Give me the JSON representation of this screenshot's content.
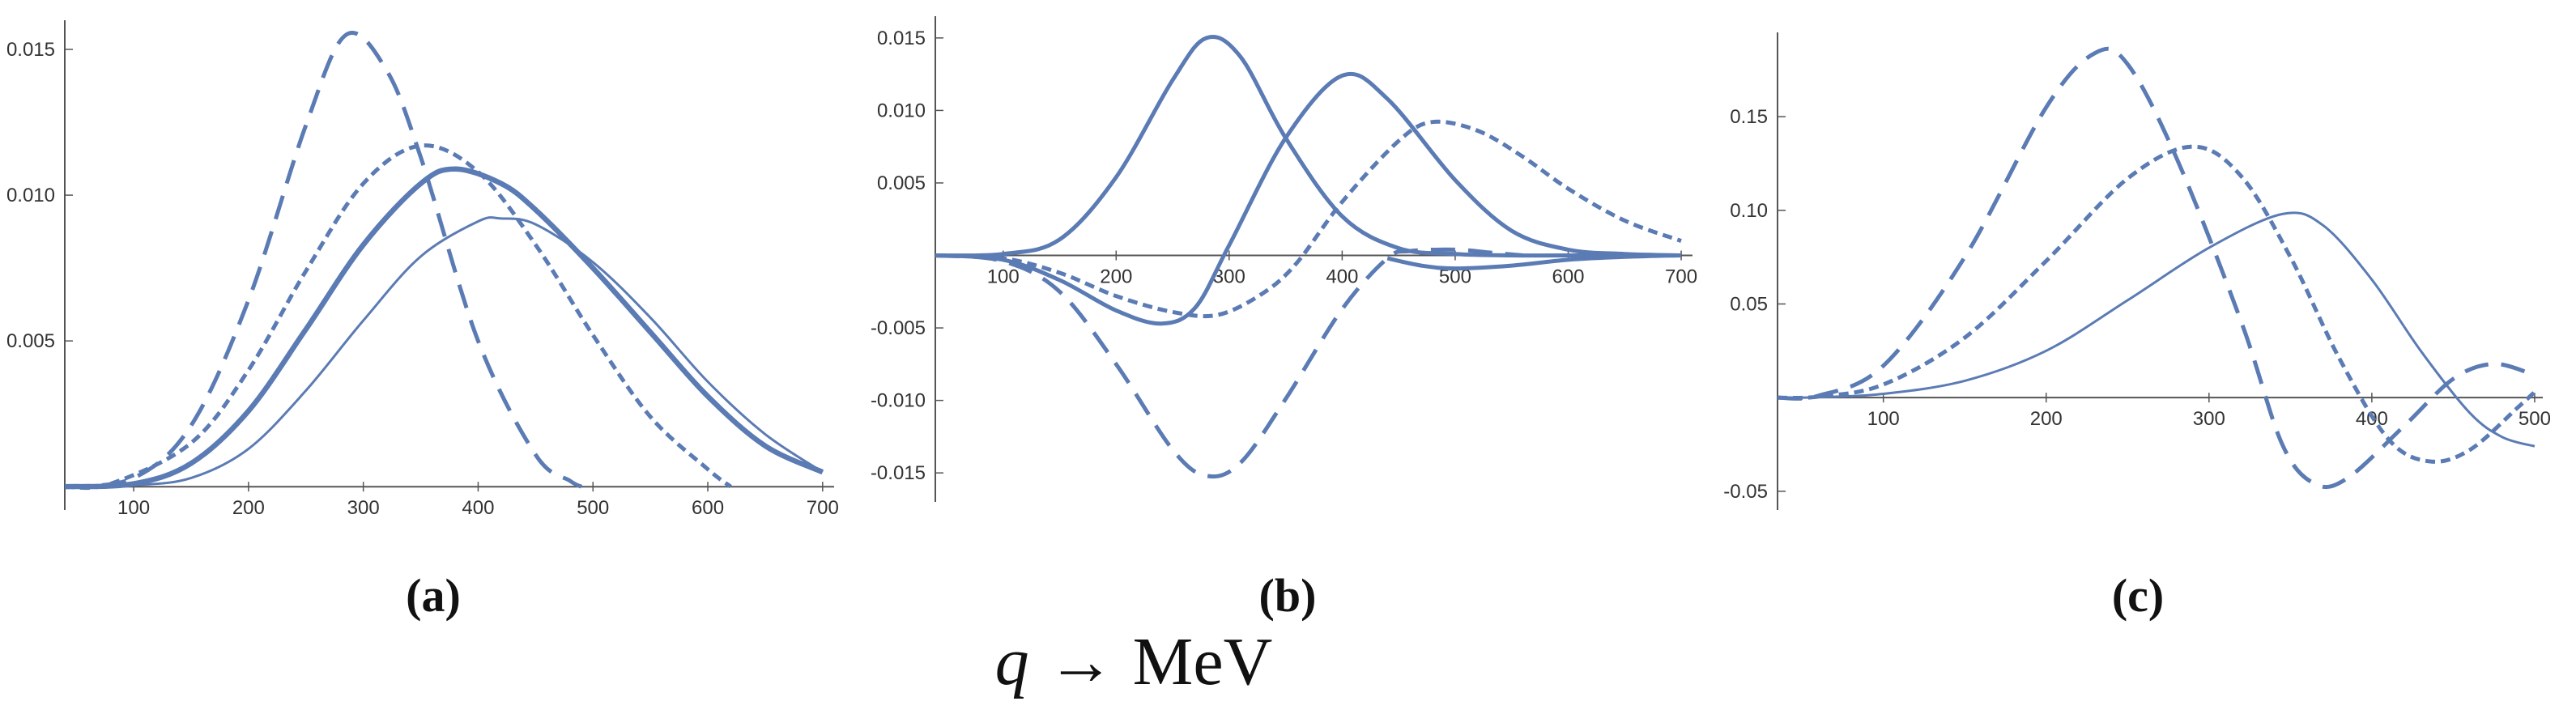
{
  "xlabel": {
    "var": "q",
    "arrow": "→",
    "unit": "MeV"
  },
  "style": {
    "line_color": "#5b7bb4",
    "axis_color": "#555555"
  },
  "chart_data": [
    {
      "type": "line",
      "panel_label": "(a)",
      "xlim": [
        40,
        710
      ],
      "ylim": [
        -0.0008,
        0.016
      ],
      "xticks": [
        100,
        200,
        300,
        400,
        500,
        600,
        700
      ],
      "yticks": [
        0.005,
        0.01,
        0.015
      ],
      "ytick_labels": [
        "0.005",
        "0.010",
        "0.015"
      ],
      "grid": false,
      "series": [
        {
          "style": "long-dash",
          "points": [
            [
              40,
              0
            ],
            [
              100,
              0.0003
            ],
            [
              150,
              0.0021
            ],
            [
              200,
              0.0064
            ],
            [
              250,
              0.0124
            ],
            [
              285,
              0.0155
            ],
            [
              320,
              0.0143
            ],
            [
              350,
              0.0113
            ],
            [
              400,
              0.005
            ],
            [
              450,
              0.0011
            ],
            [
              480,
              0.0002
            ],
            [
              490,
              0
            ]
          ]
        },
        {
          "style": "short-dash",
          "points": [
            [
              40,
              0
            ],
            [
              80,
              0.0001
            ],
            [
              150,
              0.0015
            ],
            [
              200,
              0.004
            ],
            [
              250,
              0.0074
            ],
            [
              300,
              0.0104
            ],
            [
              350,
              0.0117
            ],
            [
              400,
              0.0108
            ],
            [
              450,
              0.0083
            ],
            [
              500,
              0.0052
            ],
            [
              550,
              0.0024
            ],
            [
              600,
              0.0006
            ],
            [
              620,
              0
            ]
          ]
        },
        {
          "style": "thick-solid",
          "points": [
            [
              40,
              0
            ],
            [
              100,
              0.0001
            ],
            [
              150,
              0.0008
            ],
            [
              200,
              0.0026
            ],
            [
              250,
              0.0054
            ],
            [
              300,
              0.0083
            ],
            [
              350,
              0.0104
            ],
            [
              380,
              0.0109
            ],
            [
              420,
              0.0104
            ],
            [
              450,
              0.0095
            ],
            [
              500,
              0.0075
            ],
            [
              550,
              0.0053
            ],
            [
              600,
              0.0031
            ],
            [
              650,
              0.0014
            ],
            [
              700,
              0.0005
            ]
          ]
        },
        {
          "style": "thin-solid",
          "points": [
            [
              40,
              0
            ],
            [
              100,
              5e-05
            ],
            [
              150,
              0.0003
            ],
            [
              200,
              0.0013
            ],
            [
              250,
              0.0033
            ],
            [
              300,
              0.0057
            ],
            [
              350,
              0.0079
            ],
            [
              400,
              0.0091
            ],
            [
              420,
              0.0092
            ],
            [
              450,
              0.009
            ],
            [
              500,
              0.0077
            ],
            [
              550,
              0.0058
            ],
            [
              600,
              0.0036
            ],
            [
              650,
              0.0018
            ],
            [
              700,
              0.0005
            ]
          ]
        }
      ]
    },
    {
      "type": "line",
      "panel_label": "(b)",
      "xlim": [
        40,
        710
      ],
      "ylim": [
        -0.017,
        0.0165
      ],
      "xticks": [
        100,
        200,
        300,
        400,
        500,
        600,
        700
      ],
      "yticks": [
        -0.015,
        -0.01,
        -0.005,
        0.005,
        0.01,
        0.015
      ],
      "ytick_labels": [
        "-0.015",
        "-0.010",
        "-0.005",
        "0.005",
        "0.010",
        "0.015"
      ],
      "grid": false,
      "series": [
        {
          "style": "solid",
          "points": [
            [
              40,
              0
            ],
            [
              100,
              0.0001
            ],
            [
              150,
              0.0011
            ],
            [
              200,
              0.0054
            ],
            [
              250,
              0.0121
            ],
            [
              280,
              0.015
            ],
            [
              310,
              0.0137
            ],
            [
              350,
              0.0081
            ],
            [
              400,
              0.0027
            ],
            [
              450,
              0.0005
            ],
            [
              500,
              0.0001
            ],
            [
              550,
              0
            ],
            [
              600,
              0
            ],
            [
              700,
              0
            ]
          ]
        },
        {
          "style": "solid",
          "points": [
            [
              40,
              0
            ],
            [
              100,
              -0.0003
            ],
            [
              150,
              -0.0017
            ],
            [
              200,
              -0.0038
            ],
            [
              240,
              -0.0047
            ],
            [
              270,
              -0.0036
            ],
            [
              300,
              0.0007
            ],
            [
              350,
              0.0081
            ],
            [
              400,
              0.0124
            ],
            [
              440,
              0.0108
            ],
            [
              500,
              0.0052
            ],
            [
              550,
              0.0017
            ],
            [
              600,
              0.0004
            ],
            [
              650,
              0.0001
            ],
            [
              700,
              0
            ]
          ]
        },
        {
          "style": "solid",
          "points": [
            [
              440,
              -0.0002
            ],
            [
              470,
              -0.0007
            ],
            [
              500,
              -0.0009
            ],
            [
              550,
              -0.0007
            ],
            [
              600,
              -0.0003
            ],
            [
              650,
              -0.0001
            ],
            [
              700,
              0
            ]
          ]
        },
        {
          "style": "short-dash",
          "points": [
            [
              40,
              0
            ],
            [
              100,
              -0.0002
            ],
            [
              150,
              -0.0012
            ],
            [
              200,
              -0.0028
            ],
            [
              250,
              -0.0039
            ],
            [
              290,
              -0.0041
            ],
            [
              330,
              -0.0026
            ],
            [
              360,
              -0.0005
            ],
            [
              400,
              0.0037
            ],
            [
              450,
              0.0079
            ],
            [
              480,
              0.0092
            ],
            [
              520,
              0.0086
            ],
            [
              560,
              0.0068
            ],
            [
              600,
              0.0046
            ],
            [
              650,
              0.0024
            ],
            [
              700,
              0.001
            ]
          ]
        },
        {
          "style": "long-dash",
          "points": [
            [
              40,
              0
            ],
            [
              100,
              -0.0004
            ],
            [
              150,
              -0.0025
            ],
            [
              200,
              -0.0075
            ],
            [
              250,
              -0.0134
            ],
            [
              280,
              -0.0152
            ],
            [
              310,
              -0.0143
            ],
            [
              350,
              -0.0099
            ],
            [
              400,
              -0.0037
            ],
            [
              440,
              -0.0002
            ],
            [
              460,
              0.0003
            ],
            [
              500,
              0.0004
            ],
            [
              530,
              0.0002
            ],
            [
              560,
              0
            ]
          ]
        }
      ]
    },
    {
      "type": "line",
      "panel_label": "(c)",
      "xlim": [
        35,
        505
      ],
      "ylim": [
        -0.06,
        0.195
      ],
      "xticks": [
        100,
        200,
        300,
        400,
        500
      ],
      "yticks": [
        -0.05,
        0.05,
        0.1,
        0.15
      ],
      "ytick_labels": [
        "-0.05",
        "0.05",
        "0.10",
        "0.15"
      ],
      "grid": false,
      "series": [
        {
          "style": "long-dash",
          "points": [
            [
              35,
              0
            ],
            [
              60,
              0.001
            ],
            [
              100,
              0.017
            ],
            [
              150,
              0.075
            ],
            [
              200,
              0.155
            ],
            [
              230,
              0.184
            ],
            [
              250,
              0.178
            ],
            [
              280,
              0.128
            ],
            [
              320,
              0.04
            ],
            [
              345,
              -0.025
            ],
            [
              365,
              -0.046
            ],
            [
              385,
              -0.043
            ],
            [
              420,
              -0.015
            ],
            [
              450,
              0.01
            ],
            [
              475,
              0.018
            ],
            [
              500,
              0.012
            ]
          ]
        },
        {
          "style": "short-dash",
          "points": [
            [
              35,
              0
            ],
            [
              60,
              0.0005
            ],
            [
              100,
              0.007
            ],
            [
              150,
              0.032
            ],
            [
              200,
              0.073
            ],
            [
              250,
              0.117
            ],
            [
              290,
              0.134
            ],
            [
              320,
              0.118
            ],
            [
              350,
              0.075
            ],
            [
              380,
              0.021
            ],
            [
              410,
              -0.022
            ],
            [
              435,
              -0.034
            ],
            [
              460,
              -0.028
            ],
            [
              490,
              -0.005
            ],
            [
              500,
              0.003
            ]
          ]
        },
        {
          "style": "thin-solid",
          "points": [
            [
              35,
              0
            ],
            [
              60,
              0.0002
            ],
            [
              100,
              0.002
            ],
            [
              150,
              0.009
            ],
            [
              200,
              0.025
            ],
            [
              250,
              0.052
            ],
            [
              300,
              0.08
            ],
            [
              345,
              0.098
            ],
            [
              370,
              0.092
            ],
            [
              400,
              0.063
            ],
            [
              430,
              0.025
            ],
            [
              460,
              -0.008
            ],
            [
              480,
              -0.021
            ],
            [
              500,
              -0.026
            ]
          ]
        }
      ]
    }
  ]
}
